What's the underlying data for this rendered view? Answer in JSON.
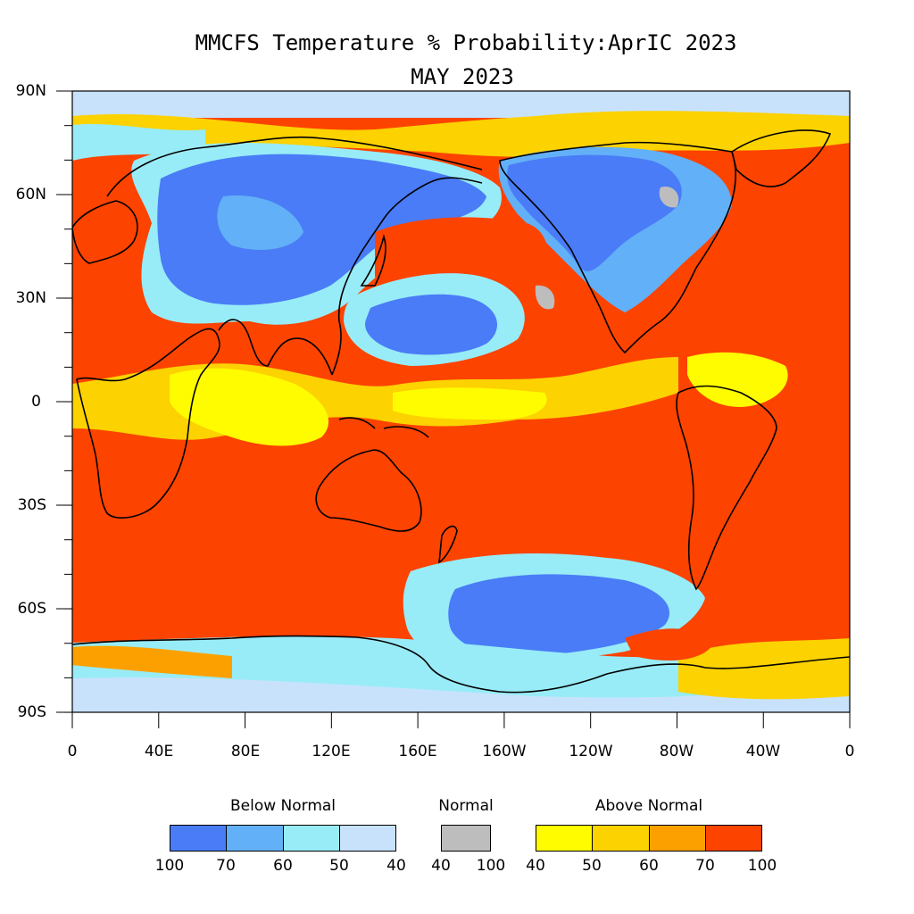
{
  "title": "MMCFS Temperature % Probability:AprIC 2023",
  "subtitle": "MAY 2023",
  "lat_labels": [
    "90N",
    "60N",
    "30N",
    "0",
    "30S",
    "60S",
    "90S"
  ],
  "lon_labels": [
    "0",
    "40E",
    "80E",
    "120E",
    "160E",
    "160W",
    "120W",
    "80W",
    "40W",
    "0"
  ],
  "legend": {
    "below": {
      "title": "Below Normal",
      "colors": [
        "#4a7cf7",
        "#62b0f7",
        "#98ecf7",
        "#c8e2fb"
      ],
      "labels": [
        "100",
        "70",
        "60",
        "50",
        "40"
      ]
    },
    "normal": {
      "title": "Normal",
      "color": "#bdbdbd",
      "labels": [
        "40",
        "100"
      ]
    },
    "above": {
      "title": "Above Normal",
      "colors": [
        "#fffc00",
        "#fcd200",
        "#fca000",
        "#fc4300"
      ],
      "labels": [
        "40",
        "50",
        "60",
        "70",
        "100"
      ]
    }
  }
}
